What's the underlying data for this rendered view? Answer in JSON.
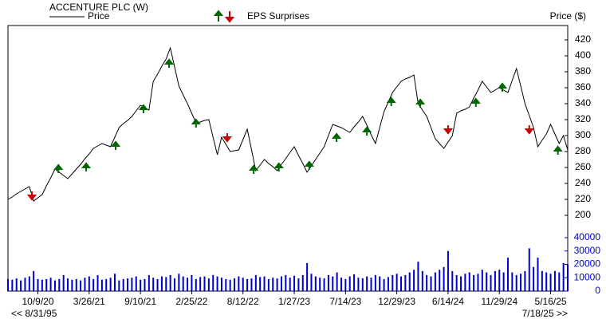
{
  "chart_data": {
    "type": "stock",
    "title": "ACCENTURE PLC (W)",
    "legend_price": "Price",
    "legend_eps": "EPS Surprises",
    "y_label": "Price ($)",
    "range_start": "<< 8/31/95",
    "range_end": "7/18/25 >>",
    "xlim": [
      0,
      131
    ],
    "xticks": [
      {
        "value": 7,
        "label": "10/9/20"
      },
      {
        "value": 19,
        "label": "3/26/21"
      },
      {
        "value": 31,
        "label": "9/10/21"
      },
      {
        "value": 43,
        "label": "2/25/22"
      },
      {
        "value": 55,
        "label": "8/12/22"
      },
      {
        "value": 67,
        "label": "1/27/23"
      },
      {
        "value": 79,
        "label": "7/14/23"
      },
      {
        "value": 91,
        "label": "12/29/23"
      },
      {
        "value": 103,
        "label": "6/14/24"
      },
      {
        "value": 115,
        "label": "11/29/24"
      },
      {
        "value": 127,
        "label": "5/16/25"
      }
    ],
    "ylim": [
      186,
      438
    ],
    "yticks": [
      200,
      220,
      240,
      260,
      280,
      300,
      320,
      340,
      360,
      380,
      400,
      420
    ],
    "y2lim": [
      0,
      40000
    ],
    "y2ticks": [
      0,
      10000,
      20000,
      30000,
      40000
    ],
    "series": [
      {
        "name": "Price",
        "color": "#000000",
        "values": [
          220,
          223,
          227,
          230,
          233,
          236,
          218,
          222,
          226,
          237,
          247,
          258,
          254,
          250,
          246,
          252,
          258,
          264,
          271,
          277,
          284,
          287,
          290,
          288,
          286,
          298,
          310,
          315,
          319,
          324,
          331,
          338,
          335,
          332,
          368,
          377,
          387,
          396,
          410,
          386,
          362,
          351,
          340,
          328,
          316,
          317,
          319,
          320,
          298,
          276,
          298,
          289,
          280,
          281,
          282,
          295,
          308,
          282,
          256,
          263,
          270,
          265,
          261,
          256,
          264,
          271,
          279,
          286,
          275,
          265,
          254,
          262,
          270,
          278,
          286,
          300,
          314,
          312,
          310,
          307,
          304,
          311,
          317,
          324,
          313,
          301,
          290,
          310,
          330,
          342,
          354,
          361,
          368,
          371,
          373,
          376,
          340,
          332,
          324,
          310,
          296,
          290,
          284,
          292,
          300,
          328,
          331,
          333,
          336,
          347,
          357,
          368,
          361,
          354,
          357,
          360,
          357,
          354,
          369,
          384,
          362,
          340,
          325,
          310,
          286,
          294,
          302,
          314,
          302,
          290,
          300,
          282
        ]
      },
      {
        "color": "#0000cc",
        "axis": "y2",
        "values": [
          9000,
          8500,
          9500,
          8000,
          10000,
          11000,
          15000,
          9000,
          8500,
          9000,
          10000,
          8000,
          9000,
          12000,
          9500,
          8500,
          9000,
          8000,
          10000,
          11000,
          9000,
          12000,
          8500,
          9000,
          10000,
          13000,
          8000,
          9000,
          9500,
          10000,
          11000,
          8500,
          9000,
          12000,
          10000,
          9000,
          11000,
          10500,
          12000,
          9500,
          13000,
          11000,
          10000,
          12000,
          9000,
          10500,
          11000,
          9500,
          12000,
          11000,
          10000,
          9000,
          8500,
          9500,
          11000,
          10000,
          9000,
          9500,
          12000,
          10500,
          11000,
          9000,
          10000,
          9500,
          11000,
          12000,
          10000,
          11500,
          9500,
          12000,
          21000,
          13000,
          11000,
          10000,
          9500,
          12000,
          11000,
          14000,
          10000,
          9000,
          11000,
          12500,
          10000,
          9500,
          11000,
          10000,
          12000,
          11000,
          9000,
          10500,
          12000,
          13000,
          11000,
          12000,
          14000,
          16000,
          22000,
          15000,
          12000,
          11000,
          14000,
          16000,
          18000,
          30000,
          15000,
          12000,
          11000,
          13000,
          14000,
          12000,
          13000,
          16000,
          14000,
          12000,
          15000,
          16000,
          14000,
          25000,
          14000,
          12000,
          13000,
          15000,
          32000,
          18000,
          25000,
          15000,
          14000,
          13000,
          15000,
          14000,
          21000,
          20000
        ]
      }
    ],
    "eps_surprises": {
      "up_color": "#006600",
      "down_color": "#cc0000",
      "x": [
        5.6,
        11.8,
        18.3,
        25.2,
        31.7,
        37.7,
        44,
        51.3,
        57.5,
        63.4,
        70.5,
        76.9,
        84,
        89.7,
        96.5,
        103,
        109.5,
        115.7,
        122,
        128.7
      ],
      "values": [
        225,
        258,
        260,
        287,
        333,
        390,
        315,
        298,
        257,
        260,
        262,
        297,
        305,
        342,
        340,
        308,
        341,
        360,
        308,
        281
      ],
      "direction": [
        "down",
        "up",
        "up",
        "up",
        "up",
        "up",
        "up",
        "down",
        "up",
        "up",
        "up",
        "up",
        "up",
        "up",
        "up",
        "down",
        "up",
        "up",
        "down",
        "up"
      ]
    }
  }
}
